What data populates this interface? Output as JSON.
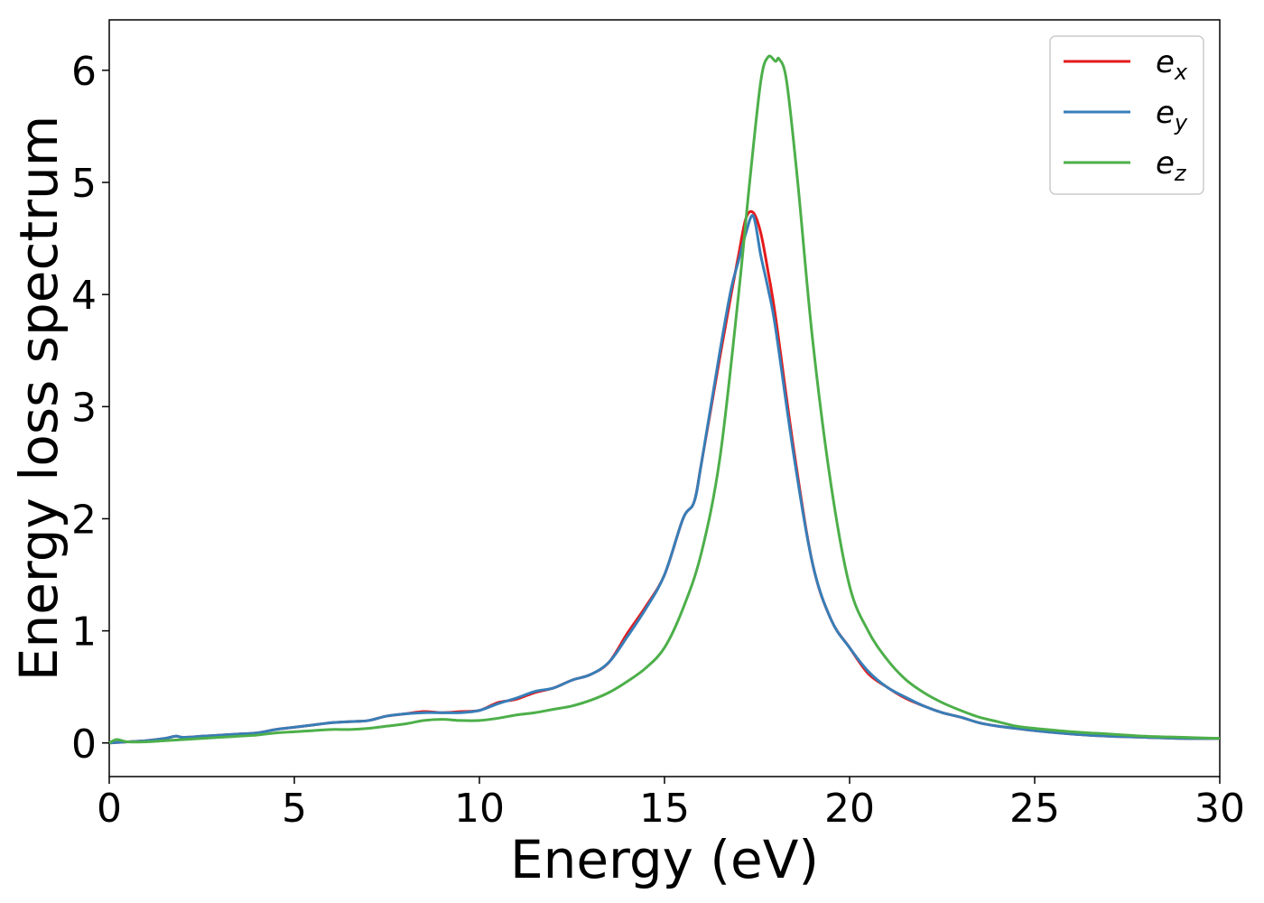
{
  "chart_data": {
    "type": "line",
    "xlabel": "Energy (eV)",
    "ylabel": "Energy loss spectrum",
    "xlim": [
      0,
      30
    ],
    "ylim": [
      -0.3,
      6.45
    ],
    "xticks": [
      "0",
      "5",
      "10",
      "15",
      "20",
      "25",
      "30"
    ],
    "yticks": [
      "0",
      "1",
      "2",
      "3",
      "4",
      "5",
      "6"
    ],
    "grid": false,
    "legend_position": "top-right",
    "series": [
      {
        "name": "e_x",
        "legend_base": "e",
        "legend_sub": "x",
        "color": "#e41a1c",
        "x": [
          0,
          0.5,
          1,
          1.5,
          1.8,
          2,
          2.5,
          3,
          3.5,
          4,
          4.5,
          5,
          5.5,
          6,
          6.5,
          7,
          7.5,
          8,
          8.5,
          9,
          9.5,
          10,
          10.5,
          11,
          11.5,
          12,
          12.5,
          13,
          13.5,
          14,
          14.5,
          15,
          15.5,
          15.8,
          16,
          16.5,
          16.8,
          17,
          17.2,
          17.4,
          17.6,
          17.8,
          18,
          18.5,
          19,
          19.5,
          20,
          20.5,
          21,
          21.5,
          22,
          22.5,
          23,
          23.5,
          24,
          24.5,
          25,
          26,
          27,
          28,
          29,
          30
        ],
        "values": [
          0.0,
          0.01,
          0.02,
          0.04,
          0.06,
          0.05,
          0.06,
          0.07,
          0.08,
          0.09,
          0.12,
          0.14,
          0.16,
          0.18,
          0.19,
          0.2,
          0.24,
          0.26,
          0.28,
          0.27,
          0.28,
          0.29,
          0.36,
          0.39,
          0.45,
          0.49,
          0.56,
          0.61,
          0.72,
          0.98,
          1.22,
          1.5,
          2.0,
          2.15,
          2.5,
          3.45,
          4.0,
          4.35,
          4.68,
          4.73,
          4.55,
          4.2,
          3.8,
          2.6,
          1.6,
          1.1,
          0.85,
          0.62,
          0.5,
          0.4,
          0.33,
          0.27,
          0.23,
          0.18,
          0.15,
          0.13,
          0.11,
          0.08,
          0.06,
          0.05,
          0.04,
          0.04
        ]
      },
      {
        "name": "e_y",
        "legend_base": "e",
        "legend_sub": "y",
        "color": "#377eb8",
        "x": [
          0,
          0.5,
          1,
          1.5,
          1.8,
          2,
          2.5,
          3,
          3.5,
          4,
          4.5,
          5,
          5.5,
          6,
          6.5,
          7,
          7.5,
          8,
          8.5,
          9,
          9.5,
          10,
          10.5,
          11,
          11.5,
          12,
          12.5,
          13,
          13.5,
          14,
          14.5,
          15,
          15.5,
          15.8,
          16,
          16.5,
          16.8,
          17,
          17.2,
          17.4,
          17.6,
          17.8,
          18,
          18.5,
          19,
          19.5,
          20,
          20.5,
          21,
          21.5,
          22,
          22.5,
          23,
          23.5,
          24,
          24.5,
          25,
          26,
          27,
          28,
          29,
          30
        ],
        "values": [
          0.0,
          0.01,
          0.02,
          0.04,
          0.06,
          0.05,
          0.06,
          0.07,
          0.08,
          0.09,
          0.12,
          0.14,
          0.16,
          0.18,
          0.19,
          0.2,
          0.24,
          0.26,
          0.27,
          0.27,
          0.27,
          0.29,
          0.35,
          0.4,
          0.46,
          0.49,
          0.56,
          0.61,
          0.72,
          0.95,
          1.2,
          1.5,
          2.0,
          2.15,
          2.5,
          3.5,
          4.05,
          4.3,
          4.55,
          4.7,
          4.35,
          4.05,
          3.7,
          2.55,
          1.6,
          1.1,
          0.85,
          0.64,
          0.5,
          0.41,
          0.33,
          0.27,
          0.23,
          0.18,
          0.15,
          0.13,
          0.11,
          0.08,
          0.06,
          0.05,
          0.04,
          0.04
        ]
      },
      {
        "name": "e_z",
        "legend_base": "e",
        "legend_sub": "z",
        "color": "#4daf4a",
        "x": [
          0,
          0.2,
          0.5,
          1,
          1.5,
          2,
          2.5,
          3,
          3.5,
          4,
          4.5,
          5,
          5.5,
          6,
          6.5,
          7,
          7.5,
          8,
          8.5,
          9,
          9.5,
          10,
          10.5,
          11,
          11.5,
          12,
          12.5,
          13,
          13.5,
          14,
          14.5,
          15,
          15.5,
          16,
          16.5,
          17,
          17.3,
          17.6,
          17.8,
          18,
          18.1,
          18.3,
          18.6,
          19,
          19.5,
          20,
          20.5,
          21,
          21.5,
          22,
          22.5,
          23,
          23.5,
          24,
          24.5,
          25,
          26,
          27,
          28,
          29,
          30
        ],
        "values": [
          0.0,
          0.03,
          0.01,
          0.01,
          0.02,
          0.03,
          0.04,
          0.05,
          0.06,
          0.07,
          0.09,
          0.1,
          0.11,
          0.12,
          0.12,
          0.13,
          0.15,
          0.17,
          0.2,
          0.21,
          0.2,
          0.2,
          0.22,
          0.25,
          0.27,
          0.3,
          0.33,
          0.38,
          0.45,
          0.55,
          0.67,
          0.85,
          1.2,
          1.7,
          2.55,
          4.0,
          5.0,
          5.9,
          6.12,
          6.08,
          6.1,
          5.9,
          5.0,
          3.6,
          2.3,
          1.4,
          1.0,
          0.75,
          0.57,
          0.45,
          0.36,
          0.29,
          0.23,
          0.19,
          0.15,
          0.13,
          0.1,
          0.08,
          0.06,
          0.05,
          0.04
        ]
      }
    ]
  }
}
